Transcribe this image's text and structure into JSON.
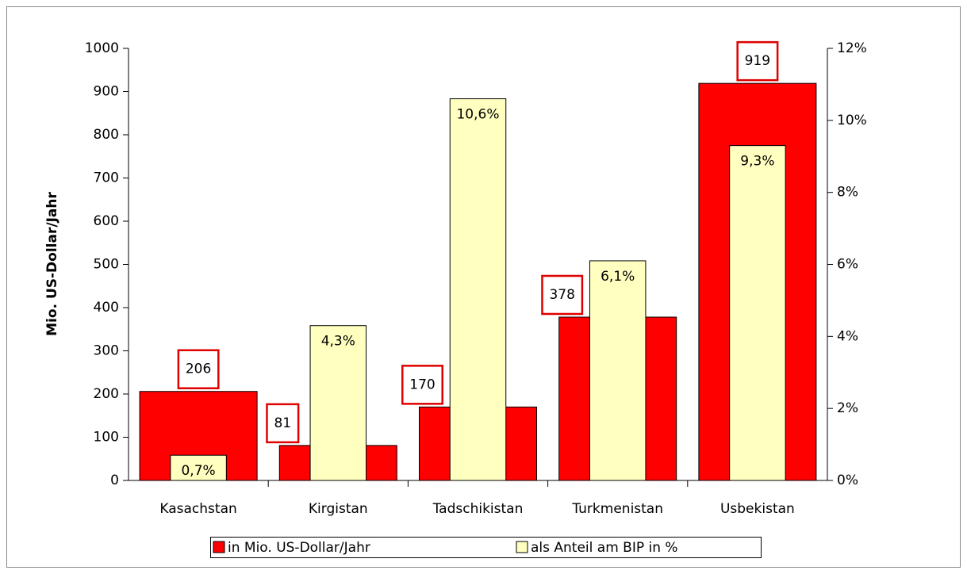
{
  "chart_data": {
    "type": "bar",
    "y_label": "Mio. US-Dollar/Jahr",
    "categories": [
      "Kasachstan",
      "Kirgistan",
      "Tadschikistan",
      "Turkmenistan",
      "Usbekistan"
    ],
    "series": [
      {
        "name": "in Mio. US-Dollar/Jahr",
        "color": "#ff0000",
        "values": [
          206,
          81,
          170,
          378,
          919
        ]
      },
      {
        "name": "als Anteil am BIP in %",
        "color": "#ffffc0",
        "axis": "y2",
        "values": [
          0.7,
          4.3,
          10.6,
          6.1,
          9.3
        ],
        "value_labels": [
          "0,7%",
          "4,3%",
          "10,6%",
          "6,1%",
          "9,3%"
        ]
      }
    ],
    "ylim": [
      0,
      1000
    ],
    "yticks": [
      0,
      100,
      200,
      300,
      400,
      500,
      600,
      700,
      800,
      900,
      1000
    ],
    "y2lim": [
      0,
      12
    ],
    "y2ticks": [
      {
        "value": 0,
        "label": "0%"
      },
      {
        "value": 2,
        "label": "2%"
      },
      {
        "value": 4,
        "label": "4%"
      },
      {
        "value": 6,
        "label": "6%"
      },
      {
        "value": 8,
        "label": "8%"
      },
      {
        "value": 10,
        "label": "10%"
      },
      {
        "value": 12,
        "label": "12%"
      }
    ],
    "grid": false
  }
}
